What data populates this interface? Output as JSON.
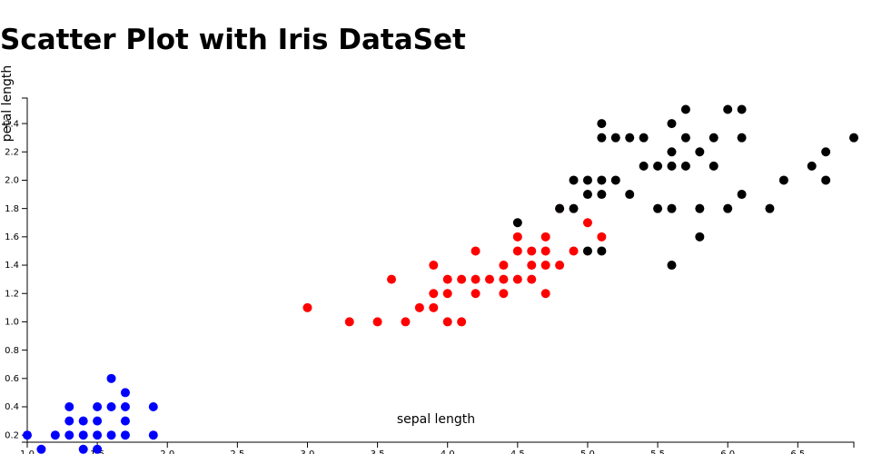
{
  "chart_data": {
    "type": "scatter",
    "title": "Scatter Plot with Iris DataSet",
    "xlabel": "sepal length",
    "ylabel": "petal length",
    "xlim": [
      1.0,
      6.9
    ],
    "ylim": [
      0.15,
      2.58
    ],
    "x_ticks": [
      "1.0",
      "1.5",
      "2.0",
      "2.5",
      "3.0",
      "3.5",
      "4.0",
      "4.5",
      "5.0",
      "5.5",
      "6.0",
      "6.5"
    ],
    "y_ticks": [
      "0.2",
      "0.4",
      "0.6",
      "0.8",
      "1.0",
      "1.2",
      "1.4",
      "1.6",
      "1.8",
      "2.0",
      "2.2",
      "2.4"
    ],
    "grid": false,
    "series": [
      {
        "color": "#0000ff",
        "points": [
          [
            1.0,
            0.2
          ],
          [
            1.1,
            0.1
          ],
          [
            1.2,
            0.2
          ],
          [
            1.3,
            0.2
          ],
          [
            1.3,
            0.3
          ],
          [
            1.3,
            0.4
          ],
          [
            1.4,
            0.1
          ],
          [
            1.4,
            0.2
          ],
          [
            1.4,
            0.3
          ],
          [
            1.5,
            0.1
          ],
          [
            1.5,
            0.2
          ],
          [
            1.5,
            0.3
          ],
          [
            1.5,
            0.4
          ],
          [
            1.6,
            0.2
          ],
          [
            1.6,
            0.4
          ],
          [
            1.6,
            0.6
          ],
          [
            1.7,
            0.2
          ],
          [
            1.7,
            0.3
          ],
          [
            1.7,
            0.4
          ],
          [
            1.7,
            0.5
          ],
          [
            1.9,
            0.2
          ],
          [
            1.9,
            0.4
          ]
        ]
      },
      {
        "color": "#ff0000",
        "points": [
          [
            3.0,
            1.1
          ],
          [
            3.3,
            1.0
          ],
          [
            3.5,
            1.0
          ],
          [
            3.6,
            1.3
          ],
          [
            3.7,
            1.0
          ],
          [
            3.8,
            1.1
          ],
          [
            3.9,
            1.1
          ],
          [
            3.9,
            1.2
          ],
          [
            3.9,
            1.4
          ],
          [
            4.0,
            1.0
          ],
          [
            4.0,
            1.2
          ],
          [
            4.0,
            1.3
          ],
          [
            4.1,
            1.0
          ],
          [
            4.1,
            1.3
          ],
          [
            4.2,
            1.2
          ],
          [
            4.2,
            1.3
          ],
          [
            4.2,
            1.5
          ],
          [
            4.3,
            1.3
          ],
          [
            4.4,
            1.2
          ],
          [
            4.4,
            1.3
          ],
          [
            4.4,
            1.4
          ],
          [
            4.5,
            1.3
          ],
          [
            4.5,
            1.5
          ],
          [
            4.5,
            1.6
          ],
          [
            4.6,
            1.3
          ],
          [
            4.6,
            1.4
          ],
          [
            4.6,
            1.5
          ],
          [
            4.7,
            1.2
          ],
          [
            4.7,
            1.4
          ],
          [
            4.7,
            1.5
          ],
          [
            4.7,
            1.6
          ],
          [
            4.8,
            1.4
          ],
          [
            4.8,
            1.8
          ],
          [
            4.9,
            1.5
          ],
          [
            5.0,
            1.7
          ],
          [
            5.1,
            1.6
          ]
        ]
      },
      {
        "color": "#000000",
        "points": [
          [
            4.5,
            1.7
          ],
          [
            4.8,
            1.8
          ],
          [
            4.9,
            1.8
          ],
          [
            4.9,
            2.0
          ],
          [
            5.0,
            1.5
          ],
          [
            5.0,
            1.9
          ],
          [
            5.0,
            2.0
          ],
          [
            5.1,
            1.5
          ],
          [
            5.1,
            1.9
          ],
          [
            5.1,
            2.0
          ],
          [
            5.1,
            2.3
          ],
          [
            5.1,
            2.4
          ],
          [
            5.2,
            2.0
          ],
          [
            5.2,
            2.3
          ],
          [
            5.3,
            1.9
          ],
          [
            5.3,
            2.3
          ],
          [
            5.4,
            2.1
          ],
          [
            5.4,
            2.3
          ],
          [
            5.5,
            1.8
          ],
          [
            5.5,
            2.1
          ],
          [
            5.6,
            1.4
          ],
          [
            5.6,
            1.8
          ],
          [
            5.6,
            2.1
          ],
          [
            5.6,
            2.2
          ],
          [
            5.6,
            2.4
          ],
          [
            5.7,
            2.1
          ],
          [
            5.7,
            2.3
          ],
          [
            5.7,
            2.5
          ],
          [
            5.8,
            1.6
          ],
          [
            5.8,
            1.8
          ],
          [
            5.8,
            2.2
          ],
          [
            5.9,
            2.1
          ],
          [
            5.9,
            2.3
          ],
          [
            6.0,
            1.8
          ],
          [
            6.0,
            2.5
          ],
          [
            6.1,
            1.9
          ],
          [
            6.1,
            2.3
          ],
          [
            6.1,
            2.5
          ],
          [
            6.3,
            1.8
          ],
          [
            6.4,
            2.0
          ],
          [
            6.6,
            2.1
          ],
          [
            6.7,
            2.0
          ],
          [
            6.7,
            2.2
          ],
          [
            6.9,
            2.3
          ]
        ]
      }
    ]
  }
}
